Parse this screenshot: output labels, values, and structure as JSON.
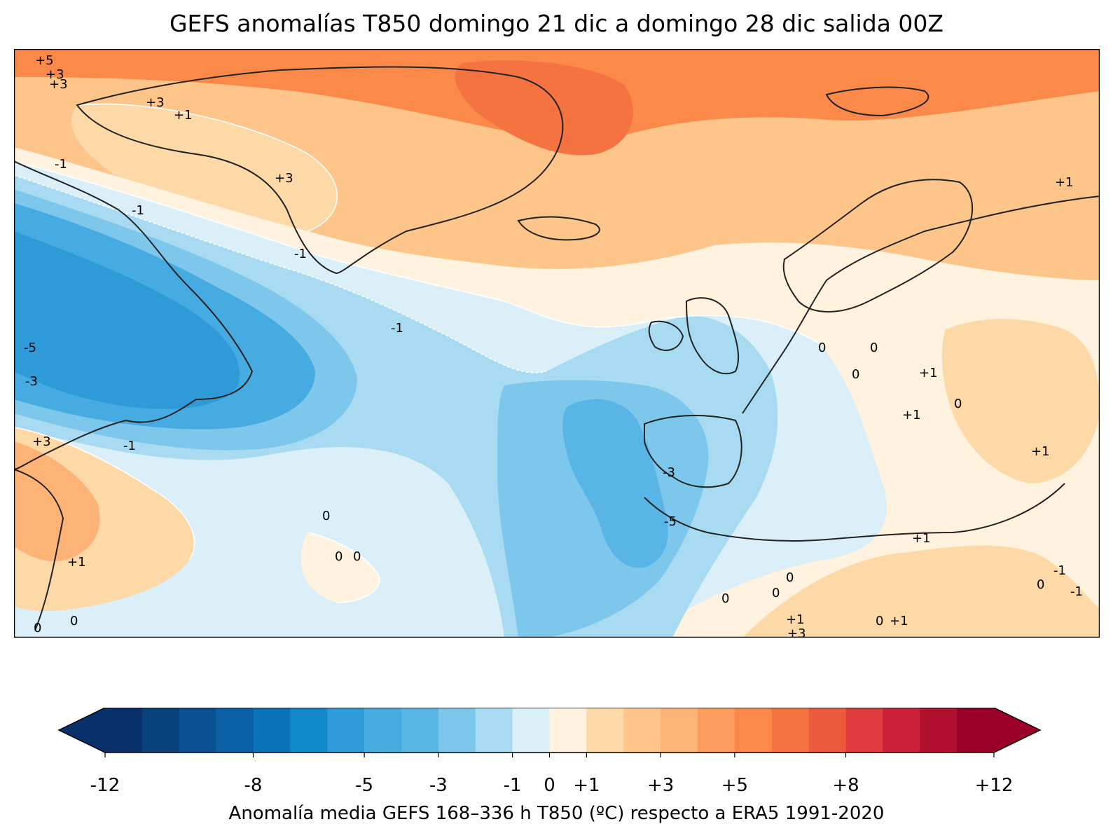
{
  "map": {
    "title": "GEFS anomalías T850 domingo 21 dic a domingo 28 dic salida 00Z",
    "variable": "T850 anomaly",
    "units": "ºC",
    "region": "North Atlantic / Europe",
    "contour_labels": [
      "+5",
      "+3",
      "+3",
      "+3",
      "+1",
      "+3",
      "-1",
      "-1",
      "-1",
      "-5",
      "-3",
      "+3",
      "-1",
      "+1",
      "0",
      "0",
      "0",
      "-1",
      "-3",
      "-5",
      "0",
      "0",
      "0",
      "0",
      "+1",
      "0",
      "0",
      "+1",
      "0",
      "+1",
      "0",
      "+1",
      "+1",
      "-1",
      "0",
      "-1",
      "+1",
      "0",
      "+3",
      "0",
      "+1"
    ],
    "palette": [
      "#08306b",
      "#08427d",
      "#0a5194",
      "#0b60a6",
      "#0b74b8",
      "#108ac9",
      "#2e9bd8",
      "#45abe0",
      "#58b5e6",
      "#7ec7ec",
      "#a8dbf1",
      "#dbeff8",
      "#fff2de",
      "#fdd9a8",
      "#fdc58a",
      "#fdb276",
      "#fc9c5e",
      "#fb8a4a",
      "#f57341",
      "#eb5a3c",
      "#e03c3e",
      "#cc2038",
      "#b0102d",
      "#9b0029"
    ]
  },
  "colorbar": {
    "min": -12,
    "max": 12,
    "extend": "both",
    "ticks": [
      "-12",
      "-8",
      "-5",
      "-3",
      "-1",
      "0",
      "+1",
      "+3",
      "+5",
      "+8",
      "+12"
    ],
    "tick_values": [
      -12,
      -8,
      -5,
      -3,
      -1,
      0,
      1,
      3,
      5,
      8,
      12
    ],
    "caption": "Anomalía media GEFS 168–336 h T850 (ºC) respecto a ERA5 1991-2020"
  }
}
